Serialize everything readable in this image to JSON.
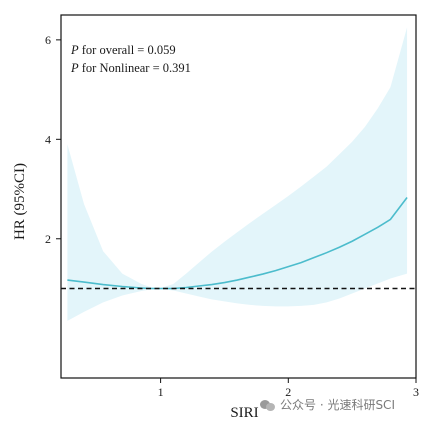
{
  "chart_data": {
    "type": "line",
    "xlabel": "SIRI",
    "ylabel": "HR (95%CI)",
    "xlim": [
      0.22,
      3.0
    ],
    "ylim": [
      -0.8,
      6.5
    ],
    "x_ticks": [
      1,
      2,
      3
    ],
    "y_ticks": [
      2,
      4,
      6
    ],
    "reference_line": {
      "y": 1,
      "style": "dashed"
    },
    "annotations": [
      {
        "italic": "P",
        "text": " for overall = 0.059"
      },
      {
        "italic": "P",
        "text": " for Nonlinear  = 0.391"
      }
    ],
    "series": [
      {
        "x": [
          0.27,
          0.4,
          0.55,
          0.7,
          0.85,
          0.92,
          1.0,
          1.1,
          1.2,
          1.3,
          1.4,
          1.5,
          1.6,
          1.7,
          1.8,
          1.9,
          2.0,
          2.1,
          2.2,
          2.3,
          2.4,
          2.5,
          2.6,
          2.7,
          2.8,
          2.93
        ],
        "y": [
          1.17,
          1.13,
          1.08,
          1.04,
          1.01,
          1.0,
          1.0,
          1.0,
          1.02,
          1.05,
          1.08,
          1.12,
          1.17,
          1.23,
          1.29,
          1.36,
          1.44,
          1.52,
          1.62,
          1.72,
          1.83,
          1.95,
          2.09,
          2.23,
          2.39,
          2.83
        ],
        "lower": [
          0.35,
          0.53,
          0.72,
          0.86,
          0.95,
          0.98,
          0.99,
          0.96,
          0.9,
          0.84,
          0.78,
          0.74,
          0.7,
          0.67,
          0.65,
          0.64,
          0.64,
          0.65,
          0.67,
          0.72,
          0.8,
          0.9,
          1.0,
          1.1,
          1.2,
          1.3
        ],
        "upper": [
          3.9,
          2.7,
          1.75,
          1.3,
          1.09,
          1.03,
          1.01,
          1.09,
          1.3,
          1.52,
          1.74,
          1.94,
          2.13,
          2.32,
          2.5,
          2.68,
          2.86,
          3.05,
          3.25,
          3.45,
          3.7,
          3.95,
          4.25,
          4.62,
          5.05,
          6.25
        ],
        "color": "#4cbccc",
        "band_color": "#e3f5fa"
      }
    ]
  },
  "watermark": "公众号 · 光速科研SCI"
}
